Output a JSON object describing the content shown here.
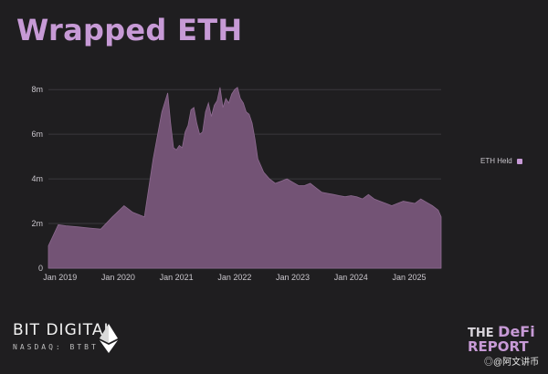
{
  "title": "Wrapped ETH",
  "legend": {
    "label": "ETH Held",
    "color": "#c79ad6"
  },
  "branding": {
    "left_name": "BIT DIGITAL",
    "left_sub": "NASDAQ: BTBT",
    "right_line1_a": "THE ",
    "right_line1_b": "DeFi",
    "right_line2": "REPORT",
    "watermark": "◎@阿文讲币"
  },
  "colors": {
    "area_fill": "#735375",
    "area_stroke": "#8d6a90",
    "grid": "#3a383d",
    "accent": "#c79ad6"
  },
  "chart_data": {
    "type": "area",
    "title": "Wrapped ETH",
    "xlabel": "",
    "ylabel": "",
    "ylim": [
      0,
      8500000
    ],
    "y_ticks": [
      {
        "v": 0,
        "label": "0"
      },
      {
        "v": 2000000,
        "label": "2m"
      },
      {
        "v": 4000000,
        "label": "4m"
      },
      {
        "v": 6000000,
        "label": "6m"
      },
      {
        "v": 8000000,
        "label": "8m"
      }
    ],
    "x_ticks": [
      "Jan 2019",
      "Jan 2020",
      "Jan 2021",
      "Jan 2022",
      "Jan 2023",
      "Jan 2024",
      "Jan 2025"
    ],
    "xlim": [
      2018.8,
      2025.55
    ],
    "series": [
      {
        "name": "ETH Held",
        "x": [
          2018.8,
          2018.97,
          2019.1,
          2019.3,
          2019.5,
          2019.7,
          2019.9,
          2020.1,
          2020.25,
          2020.45,
          2020.6,
          2020.75,
          2020.85,
          2020.9,
          2020.95,
          2021.0,
          2021.05,
          2021.1,
          2021.15,
          2021.2,
          2021.25,
          2021.3,
          2021.35,
          2021.4,
          2021.45,
          2021.5,
          2021.55,
          2021.6,
          2021.65,
          2021.7,
          2021.75,
          2021.8,
          2021.85,
          2021.9,
          2021.95,
          2022.0,
          2022.05,
          2022.1,
          2022.15,
          2022.2,
          2022.25,
          2022.3,
          2022.35,
          2022.4,
          2022.45,
          2022.5,
          2022.6,
          2022.7,
          2022.8,
          2022.9,
          2023.0,
          2023.1,
          2023.2,
          2023.3,
          2023.4,
          2023.5,
          2023.6,
          2023.7,
          2023.8,
          2023.9,
          2024.0,
          2024.1,
          2024.2,
          2024.3,
          2024.4,
          2024.5,
          2024.6,
          2024.7,
          2024.8,
          2024.9,
          2025.0,
          2025.1,
          2025.2,
          2025.3,
          2025.4,
          2025.5,
          2025.55
        ],
        "values": [
          1000000,
          1950000,
          1900000,
          1850000,
          1800000,
          1750000,
          2300000,
          2800000,
          2500000,
          2300000,
          4900000,
          7000000,
          7850000,
          6500000,
          5400000,
          5300000,
          5500000,
          5400000,
          6100000,
          6400000,
          7100000,
          7200000,
          6500000,
          6000000,
          6100000,
          7000000,
          7400000,
          6800000,
          7300000,
          7500000,
          8100000,
          7200000,
          7600000,
          7400000,
          7800000,
          8000000,
          8100000,
          7600000,
          7400000,
          7000000,
          6900000,
          6500000,
          5800000,
          4900000,
          4600000,
          4300000,
          4000000,
          3800000,
          3900000,
          4000000,
          3850000,
          3700000,
          3700000,
          3800000,
          3600000,
          3400000,
          3350000,
          3300000,
          3250000,
          3200000,
          3250000,
          3200000,
          3100000,
          3300000,
          3100000,
          3000000,
          2900000,
          2800000,
          2900000,
          3000000,
          2950000,
          2900000,
          3100000,
          2950000,
          2800000,
          2600000,
          2300000
        ]
      }
    ]
  }
}
